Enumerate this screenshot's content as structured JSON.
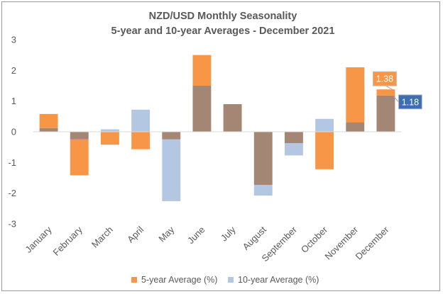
{
  "chart_data": {
    "type": "bar",
    "title_line1": "NZD/USD Monthly Seasonality",
    "title_line2": "5-year and 10-year Averages - December 2021",
    "xlabel": "",
    "ylabel": "",
    "ylim": [
      -3,
      3
    ],
    "yticks": [
      3,
      2,
      1,
      0,
      -1,
      -2,
      -3
    ],
    "ytick_labels": [
      "3",
      "2",
      "1",
      "0",
      "-1",
      "-2",
      "-3"
    ],
    "grid": false,
    "legend_position": "bottom",
    "categories": [
      "January",
      "February",
      "March",
      "April",
      "May",
      "June",
      "July",
      "August",
      "September",
      "October",
      "November",
      "December"
    ],
    "series": [
      {
        "name": "5-year Average (%)",
        "color": "#F79646",
        "values": [
          0.58,
          -1.42,
          -0.42,
          -0.57,
          -0.25,
          2.5,
          0.9,
          -1.73,
          -0.37,
          -1.22,
          2.1,
          1.38
        ]
      },
      {
        "name": "10-year Average (%)",
        "color": "#B3C7E3",
        "values": [
          0.12,
          -0.25,
          0.08,
          0.72,
          -2.26,
          1.5,
          0.9,
          -2.08,
          -0.77,
          0.42,
          0.3,
          1.18
        ]
      }
    ],
    "overlap_color": "#A48675",
    "callouts": [
      {
        "series": 0,
        "category": "December",
        "label": "1.38",
        "color": "#F79646"
      },
      {
        "series": 1,
        "category": "December",
        "label": "1.18",
        "color": "#3D6DB5"
      }
    ]
  }
}
